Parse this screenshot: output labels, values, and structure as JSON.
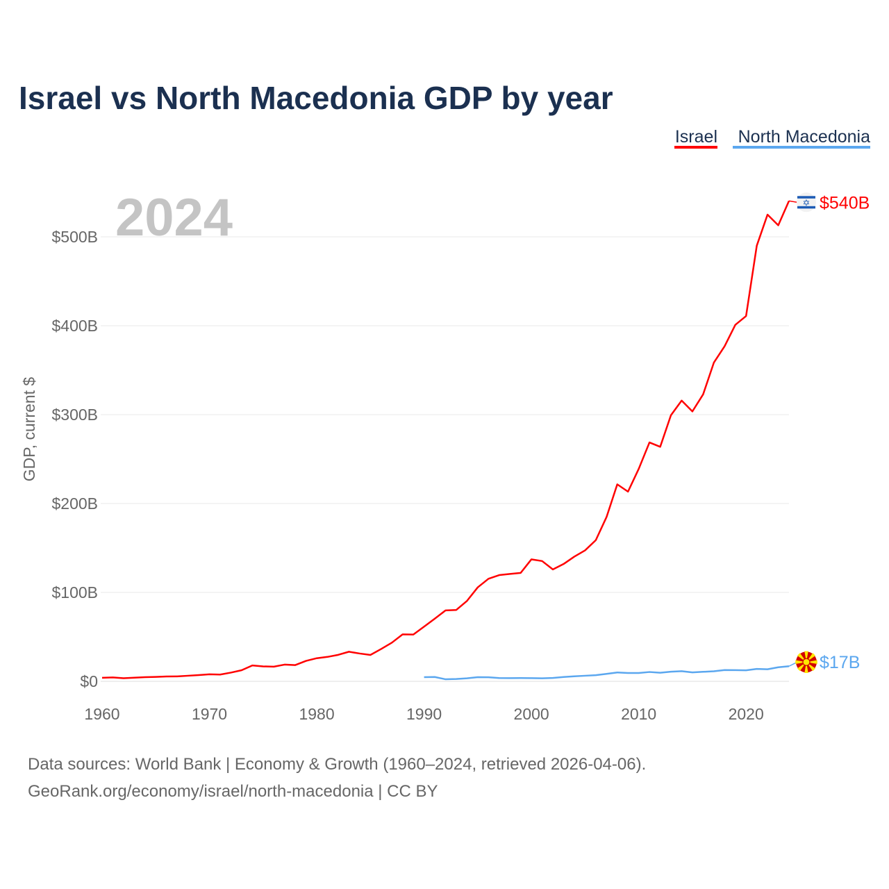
{
  "colors": {
    "israel": "#ff0000",
    "north_macedonia": "#5ba7ef",
    "title": "#1b3050"
  },
  "chart_data": {
    "type": "line",
    "title": "Israel vs North Macedonia GDP by year",
    "xlabel": "",
    "ylabel": "GDP, current $",
    "xlim": [
      1960,
      2024
    ],
    "ylim": [
      0,
      540
    ],
    "grid": true,
    "legend_position": "top-right",
    "year_watermark": "2024",
    "x_ticks": [
      "1960",
      "1970",
      "1980",
      "1990",
      "2000",
      "2010",
      "2020"
    ],
    "y_ticks": [
      {
        "value": 0,
        "label": "$0"
      },
      {
        "value": 100,
        "label": "$100B"
      },
      {
        "value": 200,
        "label": "$200B"
      },
      {
        "value": 300,
        "label": "$300B"
      },
      {
        "value": 400,
        "label": "$400B"
      },
      {
        "value": 500,
        "label": "$500B"
      }
    ],
    "series": [
      {
        "name": "Israel",
        "color": "#ff0000",
        "end_label": "$540B",
        "flag": "israel-flag",
        "start_year": 1960,
        "values": [
          4.0,
          4.4,
          3.5,
          4.1,
          4.7,
          5.0,
          5.5,
          5.6,
          6.3,
          7.0,
          7.9,
          7.6,
          9.8,
          12.5,
          17.9,
          16.8,
          16.5,
          18.8,
          18.3,
          23.0,
          26.0,
          27.5,
          29.8,
          33.3,
          31.3,
          29.7,
          36.4,
          43.5,
          52.8,
          52.6,
          61.5,
          70.5,
          79.8,
          80.3,
          90.5,
          105.7,
          115.4,
          119.5,
          120.8,
          122.0,
          137.2,
          135.3,
          125.9,
          132.0,
          140.3,
          147.3,
          158.8,
          184.8,
          221.6,
          213.4,
          239.0,
          268.7,
          263.8,
          299.3,
          315.8,
          303.6,
          322.8,
          358.5,
          376.9,
          401.0,
          410.9,
          490.1,
          525.0,
          513.0,
          540.4
        ]
      },
      {
        "name": "North Macedonia",
        "color": "#5ba7ef",
        "end_label": "$17B",
        "flag": "north-macedonia-flag",
        "start_year": 1990,
        "values": [
          4.7,
          4.9,
          2.3,
          2.6,
          3.4,
          4.7,
          4.6,
          3.7,
          3.6,
          3.7,
          3.6,
          3.4,
          3.8,
          4.9,
          5.7,
          6.3,
          6.9,
          8.4,
          10.0,
          9.4,
          9.4,
          10.5,
          9.7,
          10.8,
          11.4,
          10.1,
          10.7,
          11.3,
          12.7,
          12.6,
          12.4,
          14.0,
          13.6,
          15.8,
          17.0
        ]
      }
    ]
  },
  "footer": {
    "line1": "Data sources: World Bank | Economy & Growth (1960–2024, retrieved 2026-04-06).",
    "line2": "GeoRank.org/economy/israel/north-macedonia | CC BY"
  }
}
